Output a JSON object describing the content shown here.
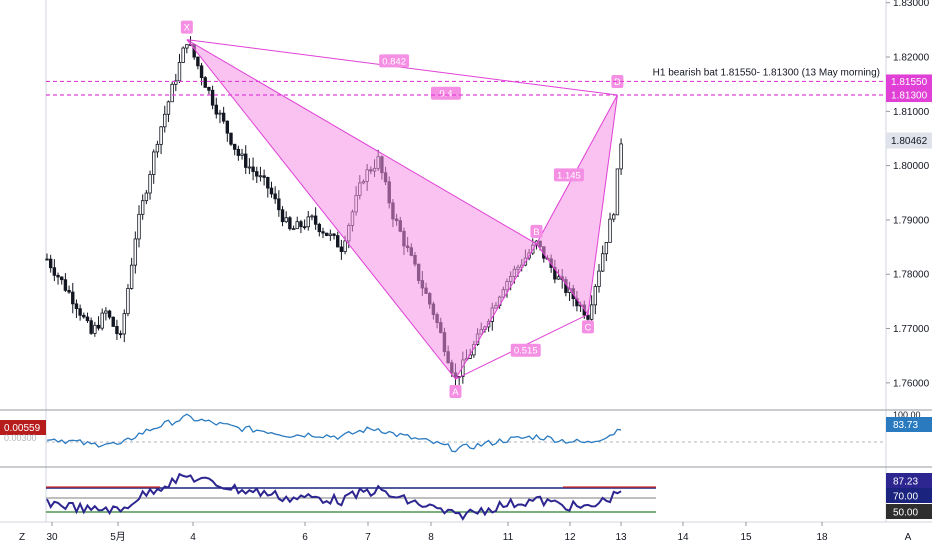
{
  "chart_data": {
    "type": "candlestick",
    "price_axis": {
      "ylim": [
        1.755,
        1.8305
      ],
      "ticks": [
        "1.83000",
        "1.82000",
        "1.81000",
        "1.80000",
        "1.79000",
        "1.78000",
        "1.77000",
        "1.76000"
      ],
      "tick_values": [
        1.83,
        1.82,
        1.81,
        1.8,
        1.79,
        1.78,
        1.77,
        1.76
      ],
      "last_price_label": "1.80462",
      "last_price": 1.80462,
      "level_labels": [
        "1.81550",
        "1.81300"
      ],
      "level_values": [
        1.8155,
        1.813
      ]
    },
    "time_axis": {
      "labels": [
        "30",
        "5月",
        "4",
        "6",
        "7",
        "8",
        "11",
        "12",
        "13",
        "14",
        "15",
        "18"
      ],
      "bars": 165
    },
    "pattern": {
      "points": [
        {
          "label": "X",
          "bar": 38,
          "price": 1.8232
        },
        {
          "label": "A",
          "bar": 111,
          "price": 1.7607
        },
        {
          "label": "B",
          "bar": 133,
          "price": 1.7856
        },
        {
          "label": "C",
          "bar": 147,
          "price": 1.7726
        },
        {
          "label": "D",
          "bar": 155,
          "price": 1.813
        }
      ],
      "ratios": [
        "0.842",
        "0.4",
        "0.515",
        "1.145"
      ],
      "annotation": "H1 bearish bat 1.81550- 1.81300 (13 May morning)",
      "fill": "#f48fe4",
      "line": "#e040d5"
    },
    "indicator1": {
      "left_label": "0.00559",
      "ghost_label": "0.00300",
      "right_label": "83.73",
      "axis_top": "100.00",
      "color": "#2a7ac0"
    },
    "indicator2": {
      "labels": [
        "87.23",
        "70.00",
        "50.00"
      ],
      "levels": [
        70,
        50
      ],
      "line_color": "#2e2690",
      "levels_colors": [
        "#1a237e",
        "#2e7d32",
        "#d32f2f"
      ]
    }
  },
  "ui": {
    "z_label": "Z",
    "a_label": "A",
    "up_color": "#131722",
    "down_color": "#131722"
  }
}
